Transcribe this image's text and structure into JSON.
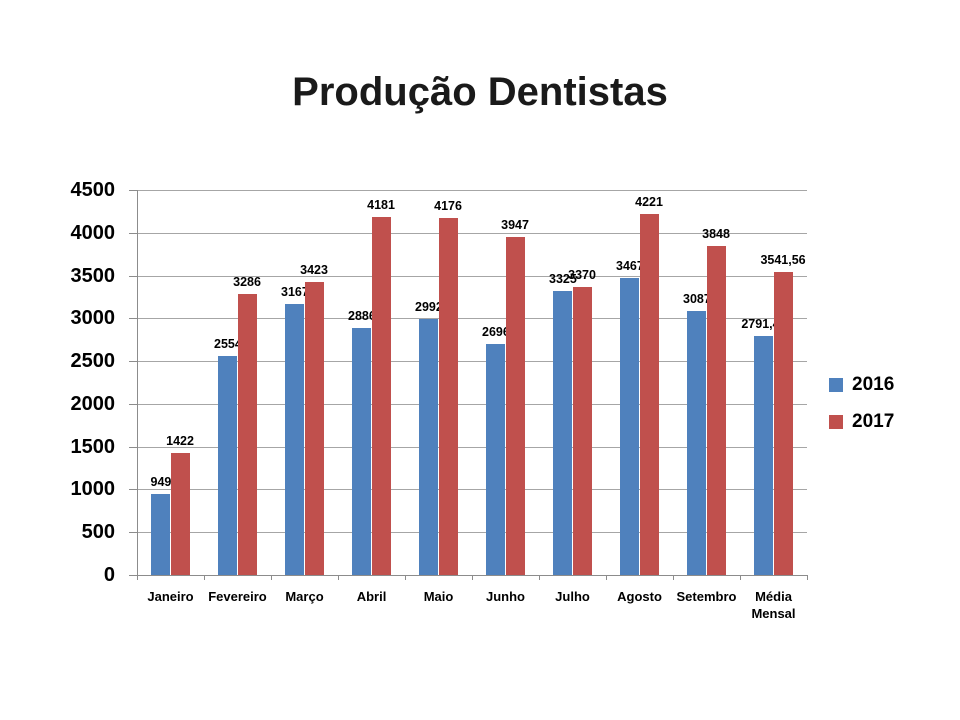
{
  "page": {
    "background": "#FFFFFF"
  },
  "chart_data": {
    "type": "bar",
    "title": "Produção Dentistas",
    "categories": [
      "Janeiro",
      "Fevereiro",
      "Março",
      "Abril",
      "Maio",
      "Junho",
      "Julho",
      "Agosto",
      "Setembro",
      "Média Mensal"
    ],
    "series": [
      {
        "name": "2016",
        "color": "#4F81BD",
        "values": [
          949,
          2554,
          3167,
          2886,
          2992,
          2696,
          3325,
          3467,
          3087,
          2791.44
        ],
        "labels": [
          "949",
          "2554",
          "3167",
          "2886",
          "2992",
          "2696",
          "3325",
          "3467",
          "3087",
          "2791,44"
        ]
      },
      {
        "name": "2017",
        "color": "#C0504D",
        "values": [
          1422,
          3286,
          3423,
          4181,
          4176,
          3947,
          3370,
          4221,
          3848,
          3541.56
        ],
        "labels": [
          "1422",
          "3286",
          "3423",
          "4181",
          "4176",
          "3947",
          "3370",
          "4221",
          "3848",
          "3541,56"
        ]
      }
    ],
    "xlabel": "",
    "ylabel": "",
    "ylim": [
      0,
      4500
    ],
    "ytick_step": 500,
    "yticks": [
      "0",
      "500",
      "1000",
      "1500",
      "2000",
      "2500",
      "3000",
      "3500",
      "4000",
      "4500"
    ],
    "grid": true,
    "legend_position": "right",
    "gridline_color": "#A6A6A6",
    "axis_color": "#8C8C8C",
    "title_color": "#1A1A1A",
    "label_color": "#000000"
  }
}
